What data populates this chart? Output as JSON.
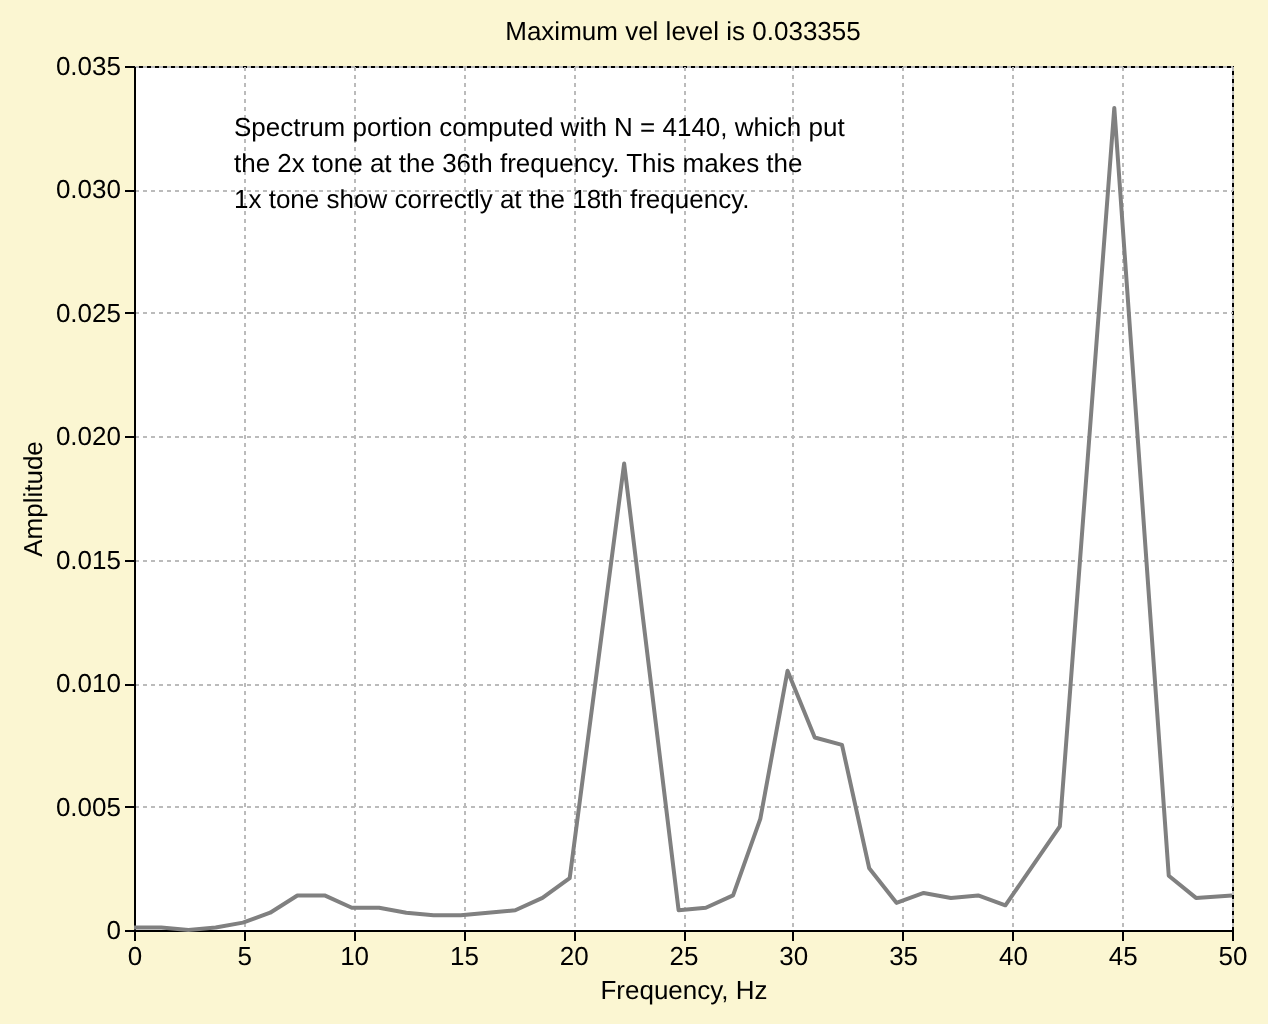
{
  "chart_data": {
    "type": "line",
    "title": "Maximum vel level is 0.033355",
    "xlabel": "Frequency, Hz",
    "ylabel": "Amplitude",
    "annotations": [
      "Spectrum portion computed with N = 4140, which put\nthe 2x tone at the 36th frequency. This makes the\n1x tone show correctly at the 18th frequency."
    ],
    "x": [
      0,
      1.24,
      2.48,
      3.72,
      4.96,
      6.2,
      7.44,
      8.68,
      9.92,
      11.16,
      12.4,
      13.64,
      14.88,
      16.12,
      17.36,
      18.6,
      19.84,
      22.32,
      24.8,
      26.04,
      27.28,
      28.52,
      29.76,
      31.0,
      32.24,
      33.48,
      34.72,
      35.96,
      37.2,
      38.44,
      39.68,
      42.16,
      44.64,
      47.12,
      48.36,
      50
    ],
    "series": [
      {
        "color": "#808080",
        "values": [
          0.0001,
          0.0001,
          0.0,
          0.0001,
          0.0003,
          0.0007,
          0.0014,
          0.0014,
          0.0009,
          0.0009,
          0.0007,
          0.0006,
          0.0006,
          0.0007,
          0.0008,
          0.0013,
          0.0021,
          0.0189,
          0.0008,
          0.0009,
          0.0014,
          0.0045,
          0.0105,
          0.0078,
          0.0075,
          0.0025,
          0.0011,
          0.0015,
          0.0013,
          0.0014,
          0.001,
          0.0042,
          0.0333,
          0.0022,
          0.0013,
          0.0014
        ]
      }
    ],
    "xlim": [
      0,
      50
    ],
    "xticks": [
      0,
      5,
      10,
      15,
      20,
      25,
      30,
      35,
      40,
      45,
      50
    ],
    "ylim": [
      0,
      0.035
    ],
    "yticks": [
      0,
      0.005,
      {
        "value": 0.01,
        "label": "0.010"
      },
      0.015,
      {
        "value": 0.02,
        "label": "0.020"
      },
      0.025,
      {
        "value": 0.03,
        "label": "0.030"
      },
      0.035
    ],
    "grid": true,
    "line_style": "solid",
    "marker": "none"
  }
}
